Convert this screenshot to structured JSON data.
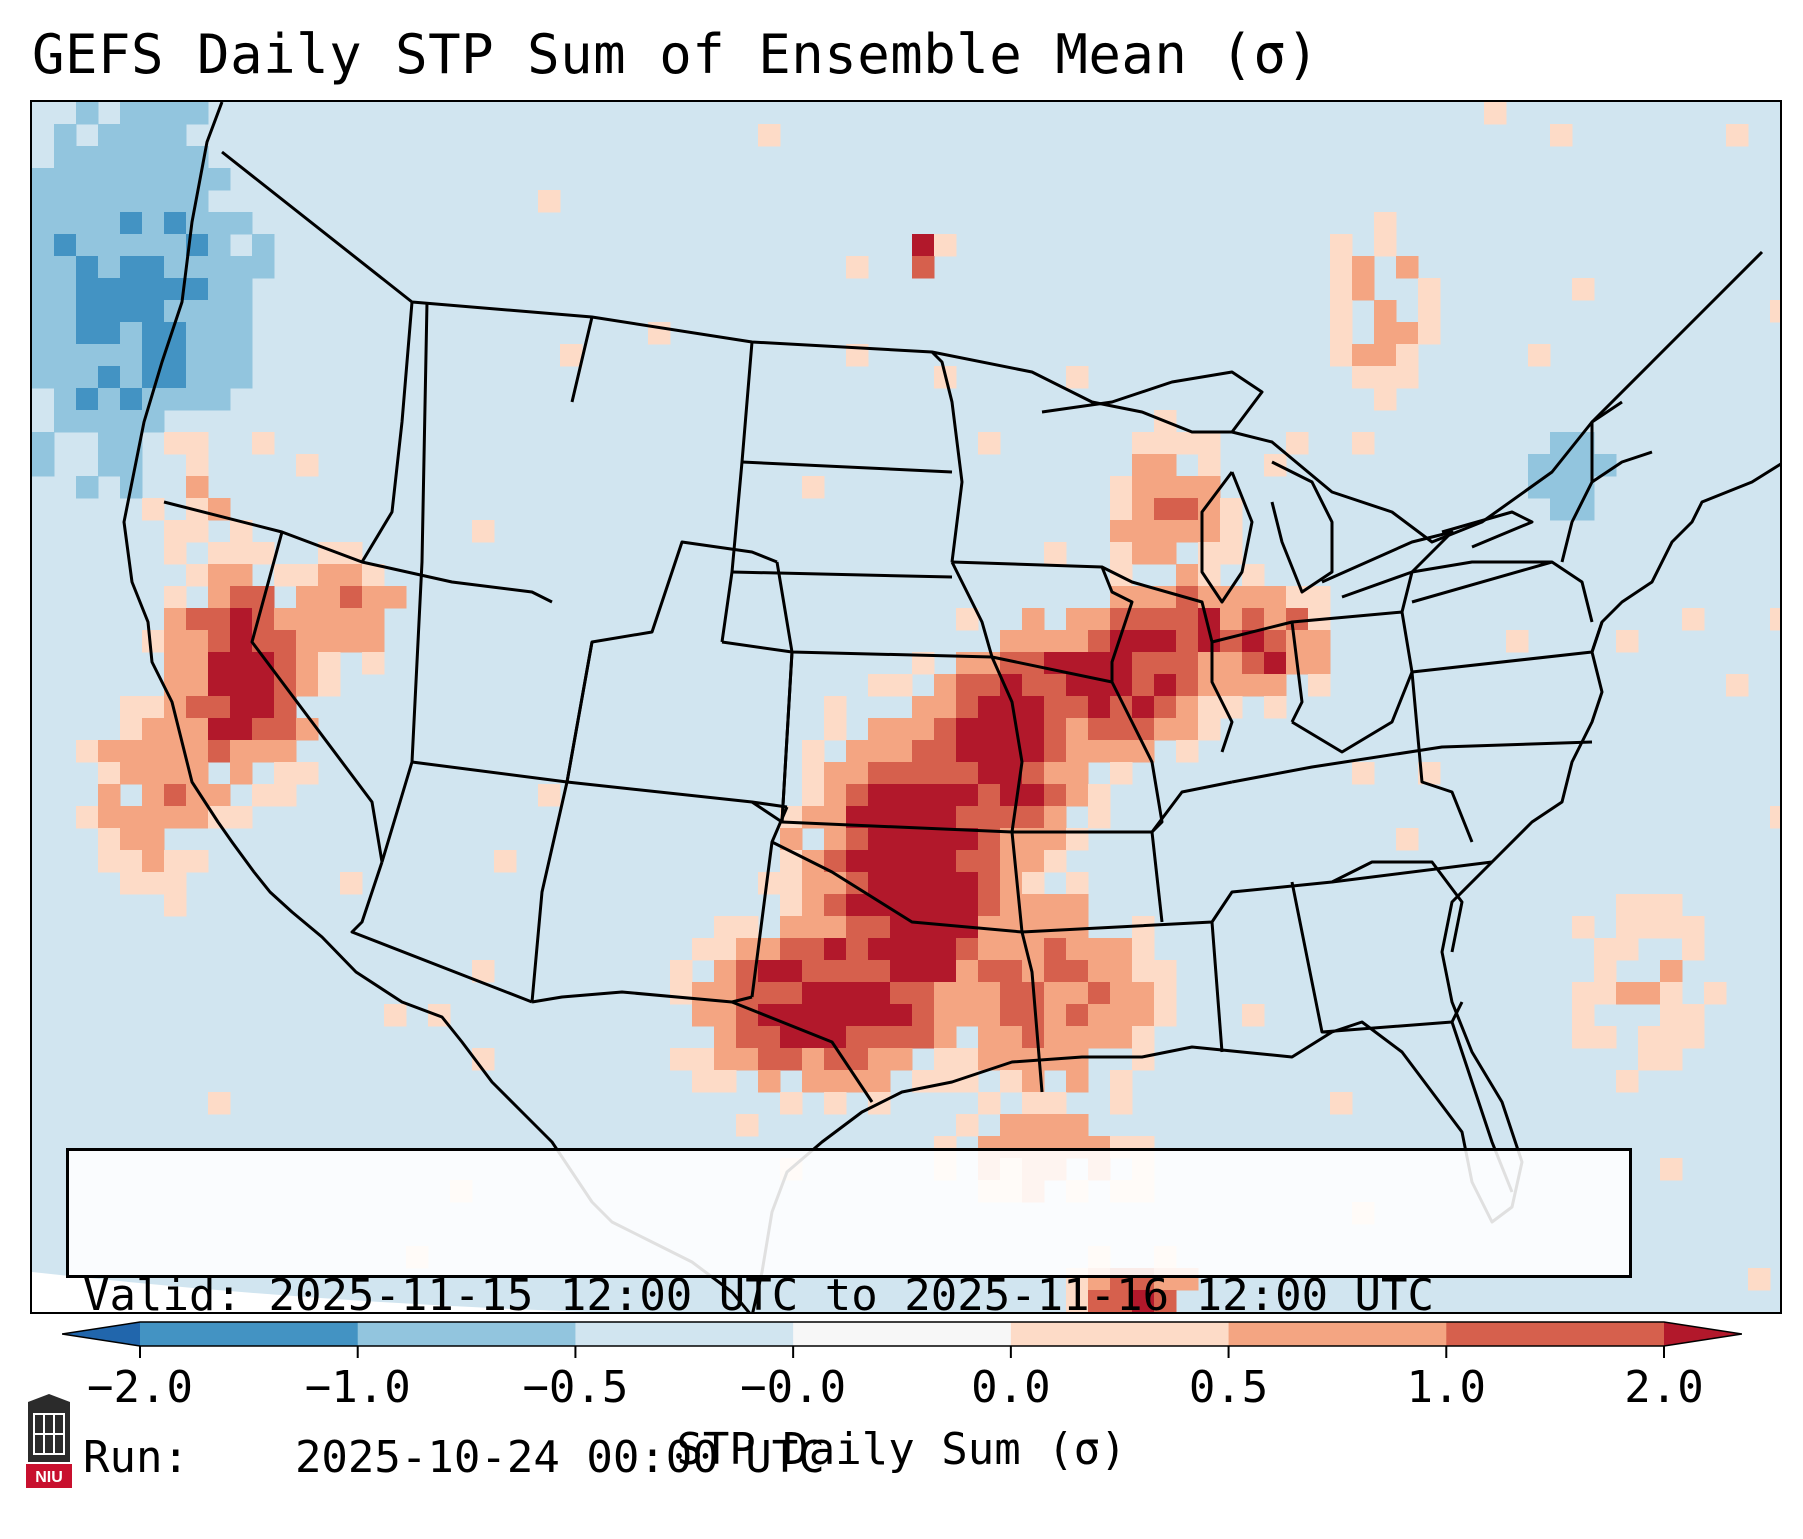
{
  "title": "GEFS Daily STP Sum of Ensemble Mean (σ)",
  "info": {
    "valid_label": "Valid:",
    "valid_value": "2025-11-15 12:00 UTC to 2025-11-16 12:00 UTC",
    "run_label": "Run:",
    "run_value": "2025-10-24 00:00 UTC"
  },
  "colorbar": {
    "label": "STP Daily Sum (σ)",
    "ticks": [
      "−2.0",
      "−1.0",
      "−0.5",
      "−0.0",
      "0.0",
      "0.5",
      "1.0",
      "2.0"
    ],
    "bins": [
      {
        "range": "< -2.0",
        "color": "#2166ac"
      },
      {
        "range": "-2.0 to -1.0",
        "color": "#4393c3"
      },
      {
        "range": "-1.0 to -0.5",
        "color": "#92c5de"
      },
      {
        "range": "-0.5 to -0.0",
        "color": "#d1e5f0"
      },
      {
        "range": "-0.0 to 0.0",
        "color": "#f7f7f7"
      },
      {
        "range": "0.0 to 0.5",
        "color": "#fddbc7"
      },
      {
        "range": "0.5 to 1.0",
        "color": "#f4a582"
      },
      {
        "range": "1.0 to 2.0",
        "color": "#d6604d"
      },
      {
        "range": "> 2.0",
        "color": "#b2182b"
      }
    ]
  },
  "logo": {
    "text": "NIU"
  },
  "map": {
    "region": "Contiguous United States",
    "background_anomaly_bin": "-0.5 to -0.0",
    "feature_descriptions": [
      "Strongest positive anomalies (> 2.0) from central Plains through Oklahoma into north Texas and the mid-Mississippi valley",
      "Secondary positive anomalies over northern California and Nevada",
      "Weak negative anomalies (-1.0 to -0.5) over the Pacific Northwest coast"
    ]
  }
}
